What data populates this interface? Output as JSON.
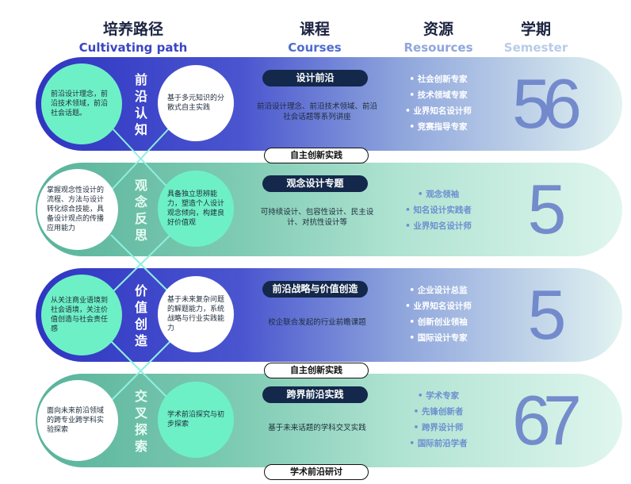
{
  "header": {
    "path": {
      "cn": "培养路径",
      "en": "Cultivating path"
    },
    "courses": {
      "cn": "课程",
      "en": "Courses"
    },
    "resources": {
      "cn": "资源",
      "en": "Resources"
    },
    "semester": {
      "cn": "学期",
      "en": "Semester"
    }
  },
  "colors": {
    "purple": "#2f35c2",
    "green": "#58b39a",
    "mint": "#6ef0c6",
    "navy": "#13284a",
    "en_path": "#3a46c4",
    "en_courses": "#4f6bd0",
    "en_resources": "#8fa6dc",
    "en_semester": "#b9cbe8"
  },
  "stages": [
    {
      "title": "前沿认知",
      "left": "前沿设计理念，前沿技术领域，前沿社会话题。",
      "right": "基于多元知识的分散式自主实践",
      "course": "设计前沿",
      "desc": "前沿设计理念、前沿技术领域、前沿社会话题等系列讲座",
      "resources": [
        "社会创新专家",
        "技术领域专家",
        "业界知名设计师",
        "竞赛指导专家"
      ],
      "semester": "56"
    },
    {
      "title": "观念反思",
      "left": "掌握观念性设计的流程、方法与设计转化综合技能，具备设计观点的传播应用能力",
      "right": "具备独立思辨能力，塑造个人设计观念倾向，构建良好价值观",
      "course": "观念设计专题",
      "desc": "可持续设计、包容性设计、民主设计、对抗性设计等",
      "resources": [
        "观念领袖",
        "知名设计实践者",
        "业界知名设计师"
      ],
      "semester": "5"
    },
    {
      "title": "价值创造",
      "left": "从关注商业语境到社会语境，关注价值创造与社会责任感",
      "right": "基于未来复杂问题的解题能力，系统战略与行业实践能力",
      "course": "前沿战略与价值创造",
      "desc": "校企联合发起的行业前瞻课题",
      "resources": [
        "企业设计总监",
        "业界知名设计师",
        "创新创业领袖",
        "国际设计专家"
      ],
      "semester": "5"
    },
    {
      "title": "交叉探索",
      "left": "面向未来前沿领域的跨专业跨学科实验探索",
      "right": "学术前沿探究与初步探索",
      "course": "跨界前沿实践",
      "desc": "基于未来话题的学科交叉实践",
      "resources": [
        "学术专家",
        "先锋创新者",
        "跨界设计师",
        "国际前沿学者"
      ],
      "semester": "67"
    }
  ],
  "connectors": [
    "自主创新实践",
    "自主创新实践",
    "学术前沿研讨"
  ]
}
